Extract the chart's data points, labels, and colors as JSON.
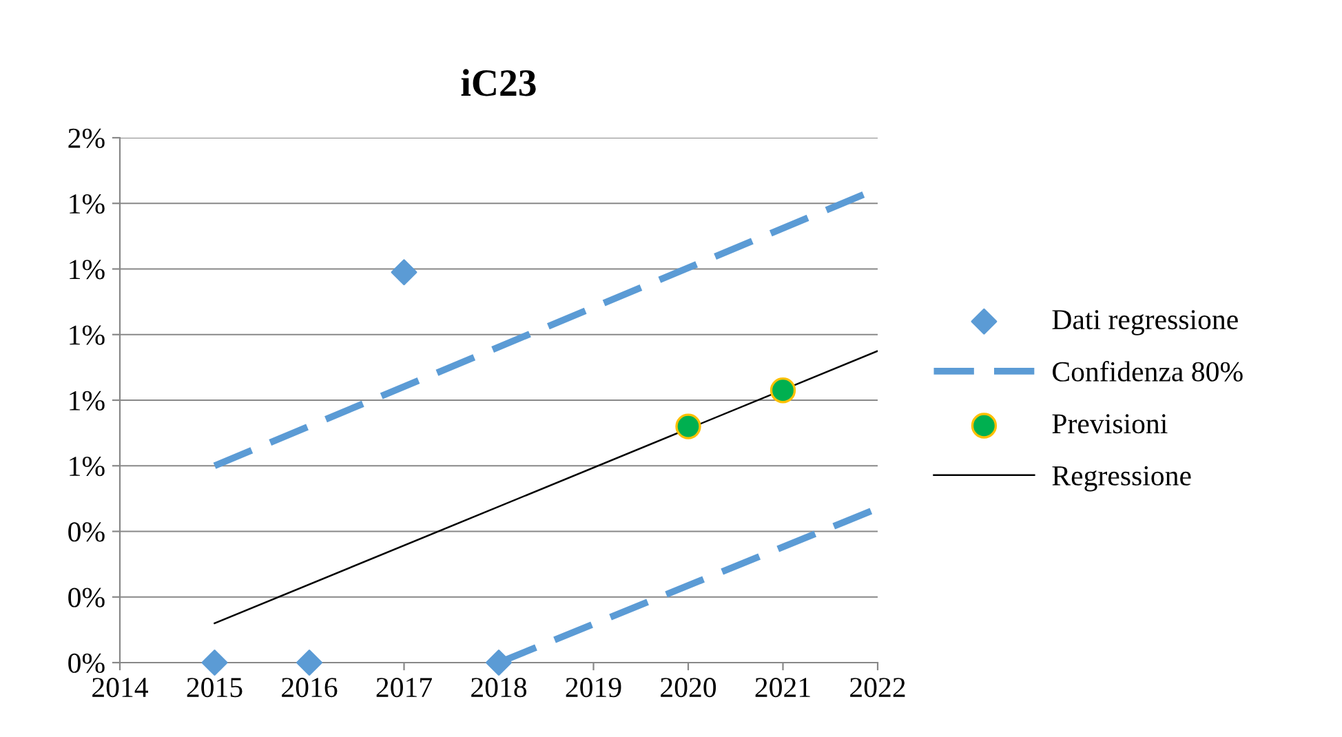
{
  "chart_data": {
    "type": "scatter",
    "title": "iC23",
    "series": [
      {
        "name": "Dati regressione",
        "marker": "diamond",
        "color": "#5b9bd5",
        "x": [
          2015,
          2016,
          2017,
          2018
        ],
        "values": [
          0,
          0,
          1.19,
          0
        ]
      },
      {
        "name": "Confidenza 80%",
        "type": "line",
        "line_style": "dashed",
        "marker": "none",
        "color": "#5b9bd5",
        "x": [
          2015,
          2022
        ],
        "values": [
          0.6,
          1.445
        ]
      },
      {
        "type": "line",
        "line_style": "dashed",
        "marker": "none",
        "color": "#5b9bd5",
        "x": [
          2018,
          2022
        ],
        "values": [
          0,
          0.47
        ]
      },
      {
        "name": "Previsioni",
        "marker": "circle",
        "color": "#00b050",
        "x": [
          2020,
          2021
        ],
        "values": [
          0.72,
          0.83
        ]
      },
      {
        "name": "Regressione",
        "type": "line",
        "line_style": "solid",
        "marker": "none",
        "color": "#000000",
        "x": [
          2015,
          2022
        ],
        "values": [
          0.12,
          0.95
        ]
      }
    ],
    "xlim": [
      2014,
      2022
    ],
    "xticks": [
      2014,
      2015,
      2016,
      2017,
      2018,
      2019,
      2020,
      2021,
      2022
    ],
    "ylim": [
      0,
      1.6
    ],
    "yticks": [
      {
        "value": 0,
        "label": "0%"
      },
      {
        "value": 0.2,
        "label": "0%"
      },
      {
        "value": 0.4,
        "label": "0%"
      },
      {
        "value": 0.6,
        "label": "1%"
      },
      {
        "value": 0.8,
        "label": "1%"
      },
      {
        "value": 1.0,
        "label": "1%"
      },
      {
        "value": 1.2,
        "label": "1%"
      },
      {
        "value": 1.4,
        "label": "1%"
      },
      {
        "value": 1.6,
        "label": "2%"
      }
    ],
    "grid": "y",
    "legend": "right"
  }
}
